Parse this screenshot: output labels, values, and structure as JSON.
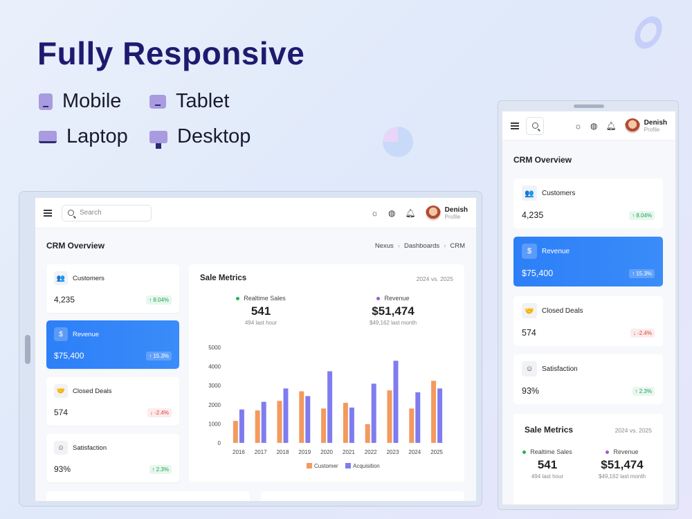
{
  "hero": {
    "title": "Fully Responsive",
    "devices": [
      "Mobile",
      "Tablet",
      "Laptop",
      "Desktop"
    ]
  },
  "app": {
    "search_placeholder": "Search",
    "user_name": "Denish",
    "user_role": "Profile",
    "page_title": "CRM Overview",
    "breadcrumb": [
      "Nexus",
      "Dashboards",
      "CRM"
    ]
  },
  "stats": [
    {
      "label": "Customers",
      "value": "4,235",
      "change": "↑ 8.04%",
      "icon": "users-icon",
      "icon_glyph": "👥"
    },
    {
      "label": "Revenue",
      "value": "$75,400",
      "change": "↑ 15.3%",
      "icon": "dollar-icon",
      "icon_glyph": "$"
    },
    {
      "label": "Closed Deals",
      "value": "574",
      "change": "↓ -2.4%",
      "icon": "handshake-icon",
      "icon_glyph": "🤝"
    },
    {
      "label": "Satisfaction",
      "value": "93%",
      "change": "↑ 2.3%",
      "icon": "smile-icon",
      "icon_glyph": "☺"
    }
  ],
  "sale_metrics": {
    "title": "Sale Metrics",
    "compare": "2024 vs. 2025",
    "kpis": [
      {
        "label": "Realtime Sales",
        "value": "541",
        "sub": "494 last hour",
        "dot": "#22b35a"
      },
      {
        "label": "Revenue",
        "value": "$51,474",
        "sub": "$49,162 last month",
        "dot": "#9b59d0"
      }
    ]
  },
  "colors": {
    "accent_blue": "#2d7ff7",
    "customer": "#f39a5d",
    "acquisition": "#7f7cf0"
  },
  "chart_data": {
    "type": "bar",
    "categories": [
      "2016",
      "2017",
      "2018",
      "2019",
      "2020",
      "2021",
      "2022",
      "2023",
      "2024",
      "2025"
    ],
    "series": [
      {
        "name": "Customer",
        "values": [
          1150,
          1700,
          2200,
          2700,
          1800,
          2100,
          980,
          2750,
          1800,
          3250
        ]
      },
      {
        "name": "Acquisition",
        "values": [
          1750,
          2150,
          2850,
          2450,
          3750,
          1850,
          3100,
          4300,
          2650,
          2850
        ]
      }
    ],
    "yticks": [
      "5000",
      "4000",
      "3000",
      "2000",
      "1000",
      "0"
    ],
    "ylim": [
      0,
      5000
    ],
    "legend": "bottom"
  }
}
